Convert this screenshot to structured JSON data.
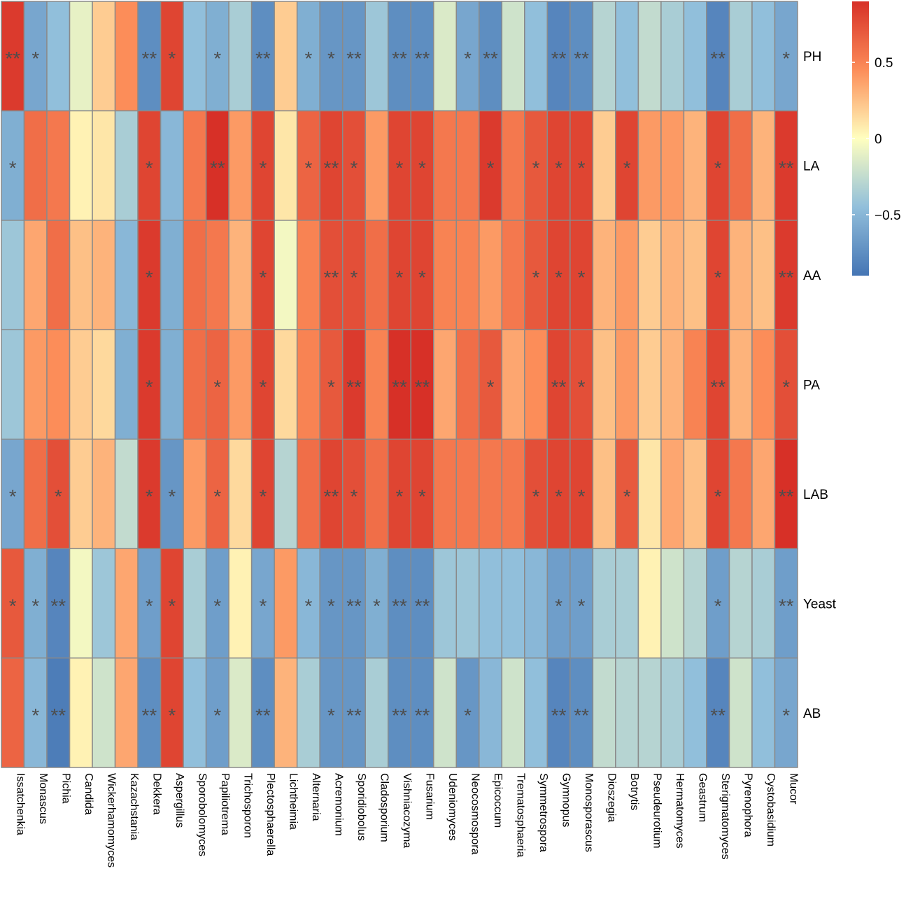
{
  "chart_data": {
    "type": "heatmap",
    "columns": [
      "Issatchenkia",
      "Monascus",
      "Pichia",
      "Candida",
      "Wickerhamomyces",
      "Kazachstania",
      "Dekkera",
      "Aspergillus",
      "Sporobolomyces",
      "Papiliotrema",
      "Trichosporon",
      "Plectosphaerella",
      "Lichtheimia",
      "Alternaria",
      "Acremonium",
      "Sporidiobolus",
      "Cladosporium",
      "Vishniacozyma",
      "Fusarium",
      "Udeniomyces",
      "Neocosmospora",
      "Epicoccum",
      "Trematosphaeria",
      "Symmetrospora",
      "Gymnopus",
      "Monosporascus",
      "Dioszegia",
      "Botrytis",
      "Pseudeurotium",
      "Hermatomyces",
      "Geastrum",
      "Sterigmatomyces",
      "Pyrenophora",
      "Cystobasidium",
      "Mucor"
    ],
    "rows": [
      "PH",
      "LA",
      "AA",
      "PA",
      "LAB",
      "Yeast",
      "AB"
    ],
    "values": [
      [
        0.85,
        -0.6,
        -0.45,
        -0.1,
        0.2,
        0.45,
        -0.75,
        0.8,
        -0.45,
        -0.55,
        -0.35,
        -0.75,
        0.2,
        -0.55,
        -0.7,
        -0.7,
        -0.4,
        -0.75,
        -0.75,
        -0.15,
        -0.6,
        -0.75,
        -0.2,
        -0.45,
        -0.8,
        -0.75,
        -0.3,
        -0.45,
        -0.25,
        -0.35,
        -0.45,
        -0.8,
        -0.35,
        -0.45,
        -0.6
      ],
      [
        -0.55,
        0.6,
        0.55,
        0.05,
        0.1,
        -0.35,
        0.8,
        -0.5,
        0.55,
        0.9,
        0.4,
        0.8,
        0.1,
        0.65,
        0.8,
        0.75,
        0.4,
        0.8,
        0.8,
        0.55,
        0.55,
        0.85,
        0.55,
        0.7,
        0.8,
        0.8,
        0.2,
        0.8,
        0.4,
        0.4,
        0.3,
        0.8,
        0.6,
        0.3,
        0.85
      ],
      [
        -0.4,
        0.35,
        0.6,
        0.25,
        0.3,
        -0.5,
        0.85,
        -0.55,
        0.6,
        0.55,
        0.3,
        0.8,
        -0.05,
        0.5,
        0.75,
        0.75,
        0.6,
        0.8,
        0.8,
        0.5,
        0.5,
        0.4,
        0.55,
        0.7,
        0.8,
        0.8,
        0.3,
        0.4,
        0.2,
        0.3,
        0.25,
        0.8,
        0.3,
        0.25,
        0.85
      ],
      [
        -0.4,
        0.4,
        0.45,
        0.2,
        0.15,
        -0.55,
        0.85,
        -0.55,
        0.6,
        0.65,
        0.4,
        0.8,
        0.15,
        0.5,
        0.7,
        0.85,
        0.5,
        0.9,
        0.9,
        0.35,
        0.6,
        0.7,
        0.35,
        0.45,
        0.8,
        0.75,
        0.25,
        0.4,
        0.2,
        0.3,
        0.5,
        0.8,
        0.3,
        0.45,
        0.75
      ],
      [
        -0.6,
        0.6,
        0.75,
        0.2,
        0.3,
        -0.25,
        0.85,
        -0.7,
        0.4,
        0.65,
        0.15,
        0.8,
        -0.3,
        0.6,
        0.8,
        0.75,
        0.6,
        0.8,
        0.8,
        0.55,
        0.55,
        0.55,
        0.55,
        0.75,
        0.8,
        0.8,
        0.25,
        0.7,
        0.1,
        0.35,
        0.25,
        0.8,
        0.55,
        0.35,
        0.9
      ],
      [
        0.7,
        -0.55,
        -0.8,
        -0.05,
        -0.4,
        0.35,
        -0.65,
        0.8,
        -0.35,
        -0.65,
        0.05,
        -0.6,
        0.4,
        -0.5,
        -0.7,
        -0.7,
        -0.55,
        -0.75,
        -0.75,
        -0.4,
        -0.4,
        -0.45,
        -0.45,
        -0.5,
        -0.65,
        -0.65,
        -0.35,
        -0.35,
        0.05,
        -0.2,
        -0.3,
        -0.65,
        -0.3,
        -0.35,
        -0.65
      ],
      [
        0.65,
        -0.5,
        -0.85,
        0.05,
        -0.2,
        0.35,
        -0.75,
        0.8,
        -0.45,
        -0.65,
        -0.15,
        -0.75,
        0.3,
        -0.35,
        -0.7,
        -0.7,
        -0.35,
        -0.75,
        -0.75,
        -0.2,
        -0.7,
        -0.5,
        -0.2,
        -0.45,
        -0.8,
        -0.75,
        -0.25,
        -0.3,
        -0.3,
        -0.35,
        -0.45,
        -0.8,
        -0.2,
        -0.45,
        -0.6
      ]
    ],
    "significance": [
      [
        "**",
        "*",
        "",
        "",
        "",
        "",
        "**",
        "*",
        "",
        "*",
        "",
        "**",
        "",
        "*",
        "*",
        "**",
        "",
        "**",
        "**",
        "",
        "*",
        "**",
        "",
        "",
        "**",
        "**",
        "",
        "",
        "",
        "",
        "",
        "**",
        "",
        "",
        "*"
      ],
      [
        "*",
        "",
        "",
        "",
        "",
        "",
        "*",
        "",
        "",
        "**",
        "",
        "*",
        "",
        "*",
        "**",
        "*",
        "",
        "*",
        "*",
        "",
        "",
        "*",
        "",
        "*",
        "*",
        "*",
        "",
        "*",
        "",
        "",
        "",
        "*",
        "",
        "",
        "**"
      ],
      [
        "",
        "",
        "",
        "",
        "",
        "",
        "*",
        "",
        "",
        "",
        "",
        "*",
        "",
        "",
        "**",
        "*",
        "",
        "*",
        "*",
        "",
        "",
        "",
        "",
        "*",
        "*",
        "*",
        "",
        "",
        "",
        "",
        "",
        "*",
        "",
        "",
        "**"
      ],
      [
        "",
        "",
        "",
        "",
        "",
        "",
        "*",
        "",
        "",
        "*",
        "",
        "*",
        "",
        "",
        "*",
        "**",
        "",
        "**",
        "**",
        "",
        "",
        "*",
        "",
        "",
        "**",
        "*",
        "",
        "",
        "",
        "",
        "",
        "**",
        "",
        "",
        "*"
      ],
      [
        "*",
        "",
        "*",
        "",
        "",
        "",
        "*",
        "*",
        "",
        "*",
        "",
        "*",
        "",
        "",
        "**",
        "*",
        "",
        "*",
        "*",
        "",
        "",
        "",
        "",
        "*",
        "*",
        "*",
        "",
        "*",
        "",
        "",
        "",
        "*",
        "",
        "",
        "**"
      ],
      [
        "*",
        "*",
        "**",
        "",
        "",
        "",
        "*",
        "*",
        "",
        "*",
        "",
        "*",
        "",
        "*",
        "*",
        "**",
        "*",
        "**",
        "**",
        "",
        "",
        "",
        "",
        "",
        "*",
        "*",
        "",
        "",
        "",
        "",
        "",
        "*",
        "",
        "",
        "**"
      ],
      [
        "",
        "*",
        "**",
        "",
        "",
        "",
        "**",
        "*",
        "",
        "*",
        "",
        "**",
        "",
        "",
        "*",
        "**",
        "",
        "**",
        "**",
        "",
        "*",
        "",
        "",
        "",
        "**",
        "**",
        "",
        "",
        "",
        "",
        "",
        "**",
        "",
        "",
        "*"
      ]
    ],
    "legend": {
      "ticks": [
        0.5,
        0,
        -0.5
      ],
      "tick_labels": [
        "0.5",
        "0",
        "−0.5"
      ],
      "range": [
        -0.9,
        0.9
      ]
    },
    "colors": {
      "low": "#4575b4",
      "mid": "#ffffbf",
      "high": "#d73027",
      "grid": "#8a8a8a",
      "star": "#4d4d4d"
    }
  }
}
